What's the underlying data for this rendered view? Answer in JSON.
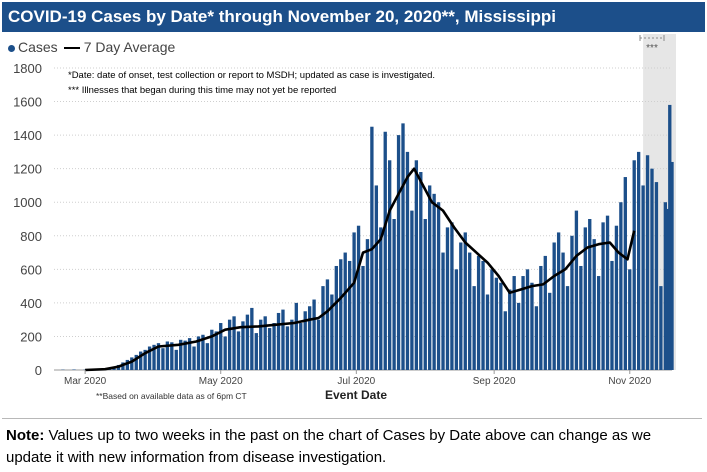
{
  "title": "COVID-19 Cases by Date* through November 20, 2020**, Mississippi",
  "legend": {
    "cases_label": "Cases",
    "avg_label": "7 Day Average"
  },
  "annotations": {
    "footnote_1": "*Date: date of onset, test collection or report to MSDH; updated as case is investigated.",
    "footnote_2": "*** Illnesses that began during this time may not yet be reported",
    "shaded_marker": "***",
    "data_note": "**Based on available data as of 6pm CT"
  },
  "note": {
    "label": "Note:",
    "text": " Values up to two weeks in the past on the chart of Cases by Date above can change as we update it with new information from disease investigation."
  },
  "colors": {
    "bar": "#1c4f8a",
    "avg": "#000000",
    "shade": "#e6e6e6",
    "title_bg": "#1c4f8a"
  },
  "chart_data": {
    "type": "bar",
    "xlabel": "Event Date",
    "ylabel": "",
    "ylim": [
      0,
      1800
    ],
    "yticks": [
      0,
      200,
      400,
      600,
      800,
      1000,
      1200,
      1400,
      1600,
      1800
    ],
    "xticks": [
      {
        "label": "Mar 2020",
        "date": "2020-03-01"
      },
      {
        "label": "May 2020",
        "date": "2020-05-01"
      },
      {
        "label": "Jul 2020",
        "date": "2020-07-01"
      },
      {
        "label": "Sep 2020",
        "date": "2020-09-01"
      },
      {
        "label": "Nov 2020",
        "date": "2020-11-01"
      }
    ],
    "x_range": [
      "2020-02-16",
      "2020-11-20"
    ],
    "shaded_range": [
      "2020-11-07",
      "2020-11-20"
    ],
    "series": [
      {
        "name": "Cases",
        "type": "bar",
        "points": [
          [
            "2020-02-20",
            2
          ],
          [
            "2020-02-25",
            3
          ],
          [
            "2020-03-01",
            2
          ],
          [
            "2020-03-05",
            4
          ],
          [
            "2020-03-08",
            6
          ],
          [
            "2020-03-10",
            8
          ],
          [
            "2020-03-12",
            12
          ],
          [
            "2020-03-14",
            20
          ],
          [
            "2020-03-16",
            30
          ],
          [
            "2020-03-18",
            45
          ],
          [
            "2020-03-20",
            60
          ],
          [
            "2020-03-22",
            75
          ],
          [
            "2020-03-24",
            90
          ],
          [
            "2020-03-26",
            110
          ],
          [
            "2020-03-28",
            120
          ],
          [
            "2020-03-30",
            140
          ],
          [
            "2020-04-01",
            150
          ],
          [
            "2020-04-03",
            160
          ],
          [
            "2020-04-05",
            130
          ],
          [
            "2020-04-07",
            170
          ],
          [
            "2020-04-09",
            165
          ],
          [
            "2020-04-11",
            120
          ],
          [
            "2020-04-13",
            180
          ],
          [
            "2020-04-15",
            175
          ],
          [
            "2020-04-17",
            190
          ],
          [
            "2020-04-19",
            140
          ],
          [
            "2020-04-21",
            200
          ],
          [
            "2020-04-23",
            210
          ],
          [
            "2020-04-25",
            160
          ],
          [
            "2020-04-27",
            240
          ],
          [
            "2020-04-29",
            230
          ],
          [
            "2020-05-01",
            280
          ],
          [
            "2020-05-03",
            200
          ],
          [
            "2020-05-05",
            300
          ],
          [
            "2020-05-07",
            320
          ],
          [
            "2020-05-09",
            230
          ],
          [
            "2020-05-11",
            290
          ],
          [
            "2020-05-13",
            330
          ],
          [
            "2020-05-15",
            370
          ],
          [
            "2020-05-17",
            220
          ],
          [
            "2020-05-19",
            300
          ],
          [
            "2020-05-21",
            320
          ],
          [
            "2020-05-23",
            250
          ],
          [
            "2020-05-25",
            280
          ],
          [
            "2020-05-27",
            340
          ],
          [
            "2020-05-29",
            360
          ],
          [
            "2020-05-31",
            260
          ],
          [
            "2020-06-02",
            300
          ],
          [
            "2020-06-04",
            400
          ],
          [
            "2020-06-06",
            280
          ],
          [
            "2020-06-08",
            350
          ],
          [
            "2020-06-10",
            380
          ],
          [
            "2020-06-12",
            420
          ],
          [
            "2020-06-14",
            300
          ],
          [
            "2020-06-16",
            500
          ],
          [
            "2020-06-18",
            540
          ],
          [
            "2020-06-20",
            450
          ],
          [
            "2020-06-22",
            620
          ],
          [
            "2020-06-24",
            660
          ],
          [
            "2020-06-26",
            700
          ],
          [
            "2020-06-28",
            650
          ],
          [
            "2020-06-30",
            820
          ],
          [
            "2020-07-02",
            860
          ],
          [
            "2020-07-04",
            620
          ],
          [
            "2020-07-06",
            780
          ],
          [
            "2020-07-08",
            1450
          ],
          [
            "2020-07-10",
            1100
          ],
          [
            "2020-07-12",
            850
          ],
          [
            "2020-07-14",
            1420
          ],
          [
            "2020-07-16",
            1250
          ],
          [
            "2020-07-18",
            900
          ],
          [
            "2020-07-20",
            1400
          ],
          [
            "2020-07-22",
            1470
          ],
          [
            "2020-07-24",
            1300
          ],
          [
            "2020-07-26",
            950
          ],
          [
            "2020-07-28",
            1250
          ],
          [
            "2020-07-30",
            1180
          ],
          [
            "2020-08-01",
            900
          ],
          [
            "2020-08-03",
            1100
          ],
          [
            "2020-08-05",
            1050
          ],
          [
            "2020-08-07",
            1000
          ],
          [
            "2020-08-09",
            700
          ],
          [
            "2020-08-11",
            850
          ],
          [
            "2020-08-13",
            880
          ],
          [
            "2020-08-15",
            600
          ],
          [
            "2020-08-17",
            760
          ],
          [
            "2020-08-19",
            820
          ],
          [
            "2020-08-21",
            700
          ],
          [
            "2020-08-23",
            500
          ],
          [
            "2020-08-25",
            680
          ],
          [
            "2020-08-27",
            650
          ],
          [
            "2020-08-29",
            450
          ],
          [
            "2020-08-31",
            600
          ],
          [
            "2020-09-02",
            550
          ],
          [
            "2020-09-04",
            520
          ],
          [
            "2020-09-06",
            350
          ],
          [
            "2020-09-08",
            480
          ],
          [
            "2020-09-10",
            560
          ],
          [
            "2020-09-12",
            400
          ],
          [
            "2020-09-14",
            560
          ],
          [
            "2020-09-16",
            600
          ],
          [
            "2020-09-18",
            520
          ],
          [
            "2020-09-20",
            380
          ],
          [
            "2020-09-22",
            620
          ],
          [
            "2020-09-24",
            680
          ],
          [
            "2020-09-26",
            460
          ],
          [
            "2020-09-28",
            760
          ],
          [
            "2020-09-30",
            820
          ],
          [
            "2020-10-02",
            700
          ],
          [
            "2020-10-04",
            500
          ],
          [
            "2020-10-06",
            800
          ],
          [
            "2020-10-08",
            950
          ],
          [
            "2020-10-10",
            620
          ],
          [
            "2020-10-12",
            850
          ],
          [
            "2020-10-14",
            900
          ],
          [
            "2020-10-16",
            780
          ],
          [
            "2020-10-18",
            560
          ],
          [
            "2020-10-20",
            880
          ],
          [
            "2020-10-22",
            920
          ],
          [
            "2020-10-24",
            650
          ],
          [
            "2020-10-26",
            860
          ],
          [
            "2020-10-28",
            1000
          ],
          [
            "2020-10-30",
            1150
          ],
          [
            "2020-11-01",
            600
          ],
          [
            "2020-11-03",
            1250
          ],
          [
            "2020-11-05",
            1300
          ],
          [
            "2020-11-07",
            1100
          ],
          [
            "2020-11-09",
            1280
          ],
          [
            "2020-11-11",
            1200
          ],
          [
            "2020-11-13",
            1120
          ],
          [
            "2020-11-15",
            500
          ],
          [
            "2020-11-17",
            1000
          ],
          [
            "2020-11-18",
            960
          ],
          [
            "2020-11-19",
            1580
          ],
          [
            "2020-11-20",
            1240
          ]
        ]
      },
      {
        "name": "7 Day Average",
        "type": "line",
        "points": [
          [
            "2020-03-01",
            0
          ],
          [
            "2020-03-10",
            5
          ],
          [
            "2020-03-16",
            20
          ],
          [
            "2020-03-22",
            50
          ],
          [
            "2020-03-28",
            100
          ],
          [
            "2020-04-03",
            140
          ],
          [
            "2020-04-12",
            150
          ],
          [
            "2020-04-20",
            170
          ],
          [
            "2020-04-27",
            200
          ],
          [
            "2020-05-03",
            240
          ],
          [
            "2020-05-10",
            255
          ],
          [
            "2020-05-18",
            260
          ],
          [
            "2020-05-26",
            270
          ],
          [
            "2020-06-03",
            280
          ],
          [
            "2020-06-10",
            300
          ],
          [
            "2020-06-14",
            310
          ],
          [
            "2020-06-18",
            350
          ],
          [
            "2020-06-24",
            430
          ],
          [
            "2020-06-30",
            520
          ],
          [
            "2020-07-04",
            700
          ],
          [
            "2020-07-08",
            720
          ],
          [
            "2020-07-12",
            780
          ],
          [
            "2020-07-16",
            950
          ],
          [
            "2020-07-20",
            1050
          ],
          [
            "2020-07-24",
            1150
          ],
          [
            "2020-07-27",
            1200
          ],
          [
            "2020-07-31",
            1100
          ],
          [
            "2020-08-04",
            1000
          ],
          [
            "2020-08-09",
            950
          ],
          [
            "2020-08-14",
            850
          ],
          [
            "2020-08-19",
            760
          ],
          [
            "2020-08-24",
            700
          ],
          [
            "2020-08-29",
            640
          ],
          [
            "2020-09-03",
            560
          ],
          [
            "2020-09-08",
            460
          ],
          [
            "2020-09-13",
            480
          ],
          [
            "2020-09-18",
            500
          ],
          [
            "2020-09-23",
            510
          ],
          [
            "2020-09-28",
            560
          ],
          [
            "2020-10-03",
            600
          ],
          [
            "2020-10-08",
            680
          ],
          [
            "2020-10-13",
            730
          ],
          [
            "2020-10-18",
            750
          ],
          [
            "2020-10-23",
            760
          ],
          [
            "2020-10-27",
            700
          ],
          [
            "2020-10-31",
            660
          ],
          [
            "2020-11-03",
            830
          ]
        ]
      }
    ]
  }
}
